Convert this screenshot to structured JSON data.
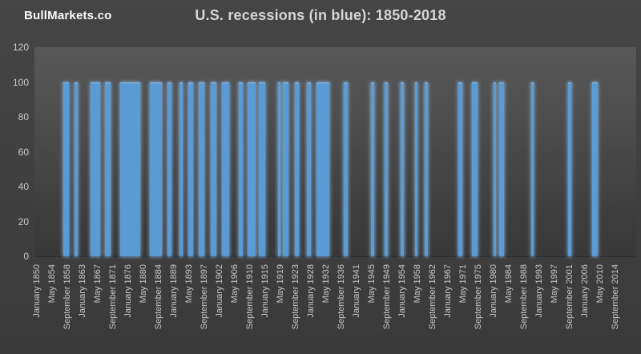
{
  "header": {
    "brand": "BullMarkets.co",
    "title": "U.S. recessions (in blue): 1850-2018"
  },
  "chart_data": {
    "type": "bar",
    "title": "U.S. recessions (in blue): 1850-2018",
    "xlabel": "",
    "ylabel": "",
    "ylim": [
      0,
      120
    ],
    "y_ticks": [
      0,
      20,
      40,
      60,
      80,
      100,
      120
    ],
    "grid": "off",
    "legend": "none",
    "x_start": "1850-01",
    "x_end": "2018-12",
    "x_tick_interval_months": 52,
    "x_tick_labels": [
      "January 1850",
      "May 1854",
      "September 1858",
      "January 1863",
      "May 1867",
      "September 1871",
      "January 1876",
      "May 1880",
      "September 1884",
      "January 1889",
      "May 1893",
      "September 1897",
      "January 1902",
      "May 1906",
      "September 1910",
      "January 1915",
      "May 1919",
      "September 1923",
      "January 1928",
      "May 1932",
      "September 1936",
      "January 1941",
      "May 1945",
      "September 1949",
      "January 1954",
      "May 1958",
      "September 1962",
      "January 1967",
      "May 1971",
      "September 1975",
      "January 1980",
      "May 1984",
      "September 1988",
      "January 1993",
      "May 1997",
      "September 2001",
      "January 2006",
      "May 2010",
      "September 2014"
    ],
    "bar_value_during_recession": 100,
    "recessions": [
      {
        "start": "1857-06",
        "end": "1858-12"
      },
      {
        "start": "1860-10",
        "end": "1861-06"
      },
      {
        "start": "1865-04",
        "end": "1867-12"
      },
      {
        "start": "1869-06",
        "end": "1870-12"
      },
      {
        "start": "1873-10",
        "end": "1879-03"
      },
      {
        "start": "1882-03",
        "end": "1885-05"
      },
      {
        "start": "1887-03",
        "end": "1888-04"
      },
      {
        "start": "1890-07",
        "end": "1891-05"
      },
      {
        "start": "1893-01",
        "end": "1894-06"
      },
      {
        "start": "1895-12",
        "end": "1897-06"
      },
      {
        "start": "1899-06",
        "end": "1900-12"
      },
      {
        "start": "1902-09",
        "end": "1904-08"
      },
      {
        "start": "1907-05",
        "end": "1908-06"
      },
      {
        "start": "1910-01",
        "end": "1912-01"
      },
      {
        "start": "1913-01",
        "end": "1914-12"
      },
      {
        "start": "1918-08",
        "end": "1919-03"
      },
      {
        "start": "1920-01",
        "end": "1921-07"
      },
      {
        "start": "1923-05",
        "end": "1924-07"
      },
      {
        "start": "1926-10",
        "end": "1927-11"
      },
      {
        "start": "1929-08",
        "end": "1933-03"
      },
      {
        "start": "1937-05",
        "end": "1938-06"
      },
      {
        "start": "1945-02",
        "end": "1945-10"
      },
      {
        "start": "1948-11",
        "end": "1949-10"
      },
      {
        "start": "1953-07",
        "end": "1954-05"
      },
      {
        "start": "1957-08",
        "end": "1958-04"
      },
      {
        "start": "1960-04",
        "end": "1961-02"
      },
      {
        "start": "1969-12",
        "end": "1970-11"
      },
      {
        "start": "1973-11",
        "end": "1975-03"
      },
      {
        "start": "1980-01",
        "end": "1980-07"
      },
      {
        "start": "1981-07",
        "end": "1982-11"
      },
      {
        "start": "1990-07",
        "end": "1991-03"
      },
      {
        "start": "2001-03",
        "end": "2001-11"
      },
      {
        "start": "2007-12",
        "end": "2009-06"
      }
    ],
    "colors": {
      "bar": "#5b9bd5",
      "bar_glow": "#89bcea",
      "page_background": "#3f3f3f",
      "plot_background_top": "#585858",
      "plot_background_bottom": "#383838",
      "tick_text": "#c8c8c8",
      "title_text": "#d6d6d6",
      "brand_text": "#fbfbfb"
    }
  }
}
